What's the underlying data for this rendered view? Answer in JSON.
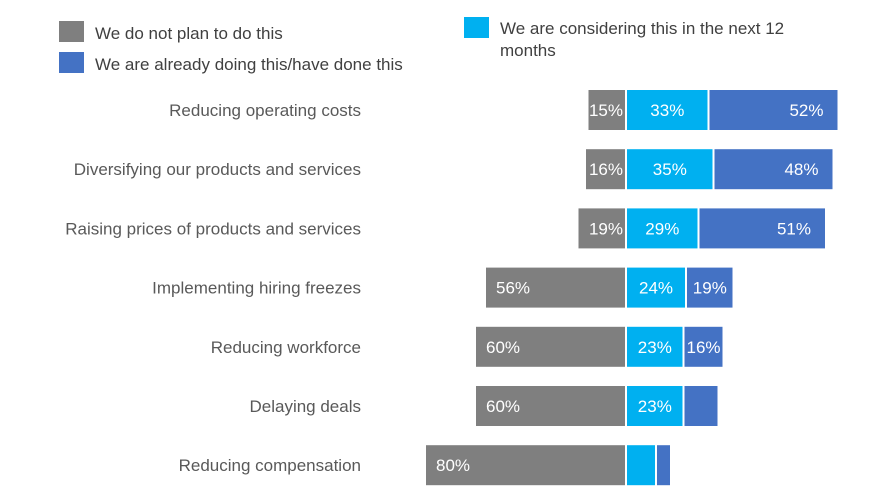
{
  "chart_data": {
    "type": "bar",
    "orientation": "horizontal",
    "stacked": true,
    "diverging": true,
    "categories": [
      "Reducing operating costs",
      "Diversifying our products and services",
      "Raising prices of products and services",
      "Implementing hiring freezes",
      "Reducing workforce",
      "Delaying deals",
      "Reducing compensation"
    ],
    "series": [
      {
        "name": "We do not plan to do this",
        "color": "#7f7f7f",
        "direction": "left",
        "values": [
          15,
          16,
          19,
          56,
          60,
          60,
          80
        ],
        "labels": [
          "15%",
          "16%",
          "19%",
          "56%",
          "60%",
          "60%",
          "80%"
        ]
      },
      {
        "name": "We are considering this in the next 12 months",
        "color": "#00b0f0",
        "direction": "right",
        "values": [
          33,
          35,
          29,
          24,
          23,
          23,
          12
        ],
        "labels": [
          "33%",
          "35%",
          "29%",
          "24%",
          "23%",
          "23%",
          ""
        ]
      },
      {
        "name": "We are already doing this/have done this",
        "color": "#4472c4",
        "direction": "right",
        "values": [
          52,
          48,
          51,
          19,
          16,
          14,
          6
        ],
        "labels": [
          "52%",
          "48%",
          "51%",
          "19%",
          "16%",
          "",
          ""
        ]
      }
    ],
    "legend": {
      "placement": "top",
      "items": [
        {
          "label": "We do not plan to do this",
          "color": "#7f7f7f"
        },
        {
          "label": "We are already doing this/have done this",
          "color": "#4472c4"
        },
        {
          "label_lines": [
            "We are considering this in the next 12",
            "months"
          ],
          "color": "#00b0f0"
        }
      ]
    },
    "grid": false,
    "title": "",
    "xlabel": "",
    "ylabel": ""
  }
}
